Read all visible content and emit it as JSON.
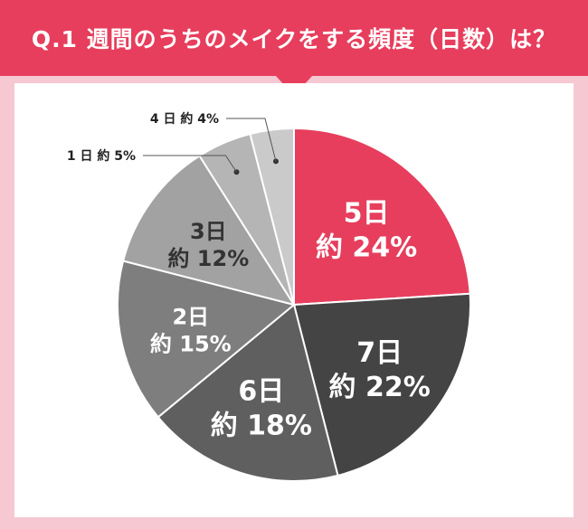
{
  "header": {
    "title": "Q.1 週間のうちのメイクをする頻度（日数）は？"
  },
  "colors": {
    "accent": "#e63e5c",
    "background": "#f6c9d2"
  },
  "chart_data": {
    "type": "pie",
    "title": "Q.1 週間のうちのメイクをする頻度（日数）は？",
    "slices": [
      {
        "day_label": "5日",
        "value_label": "約 24%",
        "value": 24,
        "color": "#e63e5c",
        "text_color": "#ffffff"
      },
      {
        "day_label": "7日",
        "value_label": "約 22%",
        "value": 22,
        "color": "#444444",
        "text_color": "#ffffff"
      },
      {
        "day_label": "6日",
        "value_label": "約 18%",
        "value": 18,
        "color": "#5f5f5f",
        "text_color": "#ffffff"
      },
      {
        "day_label": "2日",
        "value_label": "約 15%",
        "value": 15,
        "color": "#7e7e7e",
        "text_color": "#ffffff"
      },
      {
        "day_label": "3日",
        "value_label": "約 12%",
        "value": 12,
        "color": "#a2a2a2",
        "text_color": "#333333"
      },
      {
        "day_label": "1日",
        "value_label": "約 5%",
        "value": 5,
        "color": "#b5b5b5",
        "text_color": "#333333",
        "callout": "1 日 約 5%"
      },
      {
        "day_label": "4日",
        "value_label": "約 4%",
        "value": 4,
        "color": "#cacaca",
        "text_color": "#333333",
        "callout": "4 日 約 4%"
      }
    ]
  }
}
